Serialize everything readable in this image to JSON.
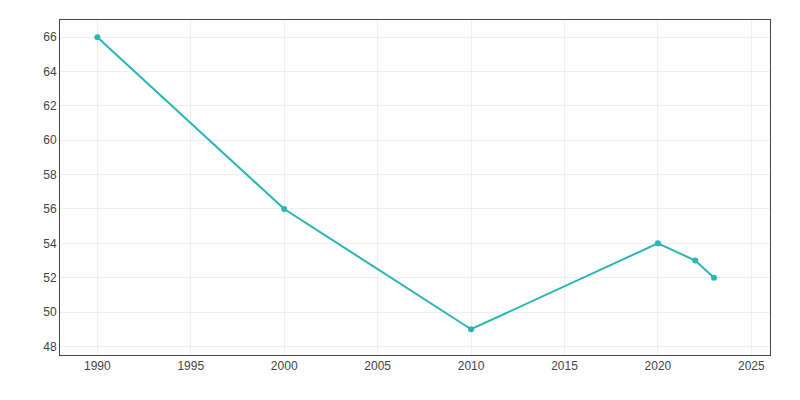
{
  "chart_data": {
    "type": "line",
    "x": [
      1990,
      2000,
      2010,
      2020,
      2022,
      2023
    ],
    "values": [
      66,
      56,
      49,
      54,
      53,
      52
    ],
    "color": "#2ab5b5",
    "marker": "circle",
    "line_style": "solid",
    "xlim": [
      1988,
      2026
    ],
    "ylim": [
      47.5,
      67
    ],
    "xticks": [
      1990,
      1995,
      2000,
      2005,
      2010,
      2015,
      2020,
      2025
    ],
    "yticks": [
      48,
      50,
      52,
      54,
      56,
      58,
      60,
      62,
      64,
      66
    ],
    "grid": true
  }
}
